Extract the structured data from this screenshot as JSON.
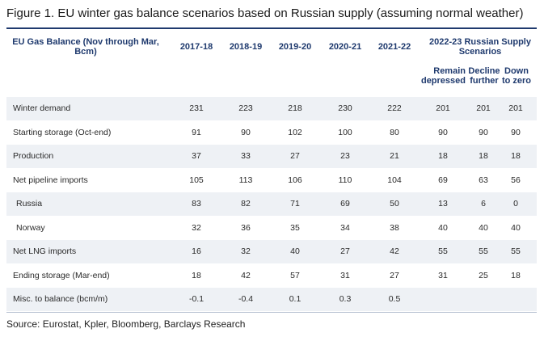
{
  "figure": {
    "title": "Figure 1. EU winter gas balance scenarios based on Russian supply (assuming normal weather)",
    "source": "Source: Eurostat, Kpler, Bloomberg, Barclays Research"
  },
  "header": {
    "label_column": "EU Gas Balance (Nov through Mar, Bcm)",
    "years": [
      "2017-18",
      "2018-19",
      "2019-20",
      "2020-21",
      "2021-22"
    ],
    "scenario_group": "2022-23 Russian Supply Scenarios",
    "scenarios": [
      "Remain depressed",
      "Decline further",
      "Down to zero"
    ]
  },
  "rows": [
    {
      "label": "Winter demand",
      "years": [
        "231",
        "223",
        "218",
        "230",
        "222"
      ],
      "scenarios": [
        "201",
        "201",
        "201"
      ]
    },
    {
      "label": "Starting storage (Oct-end)",
      "years": [
        "91",
        "90",
        "102",
        "100",
        "80"
      ],
      "scenarios": [
        "90",
        "90",
        "90"
      ]
    },
    {
      "label": "Production",
      "years": [
        "37",
        "33",
        "27",
        "23",
        "21"
      ],
      "scenarios": [
        "18",
        "18",
        "18"
      ]
    },
    {
      "label": "Net pipeline imports",
      "years": [
        "105",
        "113",
        "106",
        "110",
        "104"
      ],
      "scenarios": [
        "69",
        "63",
        "56"
      ]
    },
    {
      "label": "Russia",
      "years": [
        "83",
        "82",
        "71",
        "69",
        "50"
      ],
      "scenarios": [
        "13",
        "6",
        "0"
      ]
    },
    {
      "label": "Norway",
      "years": [
        "32",
        "36",
        "35",
        "34",
        "38"
      ],
      "scenarios": [
        "40",
        "40",
        "40"
      ]
    },
    {
      "label": "Net LNG imports",
      "years": [
        "16",
        "32",
        "40",
        "27",
        "42"
      ],
      "scenarios": [
        "55",
        "55",
        "55"
      ]
    },
    {
      "label": "Ending storage (Mar-end)",
      "years": [
        "18",
        "42",
        "57",
        "31",
        "27"
      ],
      "scenarios": [
        "31",
        "25",
        "18"
      ]
    },
    {
      "label": "Misc. to balance (bcm/m)",
      "years": [
        "-0.1",
        "-0.4",
        "0.1",
        "0.3",
        "0.5"
      ],
      "scenarios": [
        "",
        "",
        ""
      ]
    }
  ]
}
